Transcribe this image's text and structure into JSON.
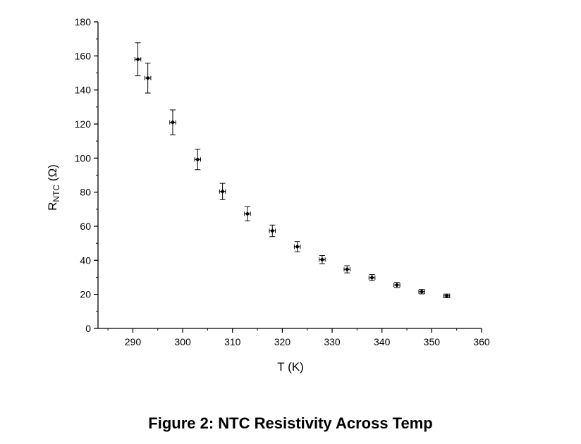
{
  "figure": {
    "caption": "Figure 2: NTC Resistivity Across Temp"
  },
  "chart_data": {
    "type": "scatter",
    "xlabel": "T (K)",
    "ylabel_main": "R",
    "ylabel_sub": "NTC",
    "ylabel_unit": " (Ω)",
    "xlim": [
      283,
      360
    ],
    "ylim": [
      0,
      180
    ],
    "x_ticks": [
      290,
      300,
      310,
      320,
      330,
      340,
      350,
      360
    ],
    "y_ticks": [
      0,
      20,
      40,
      60,
      80,
      100,
      120,
      140,
      160,
      180
    ],
    "grid": false,
    "series": [
      {
        "marker": "diamond",
        "color": "#000000",
        "points": [
          {
            "x": 291,
            "y": 158.0,
            "yerr": 9.7,
            "xerr": 0.6
          },
          {
            "x": 293,
            "y": 147.0,
            "yerr": 8.8,
            "xerr": 0.6
          },
          {
            "x": 298,
            "y": 121.0,
            "yerr": 7.3,
            "xerr": 0.6
          },
          {
            "x": 303,
            "y": 99.2,
            "yerr": 6.0,
            "xerr": 0.6
          },
          {
            "x": 308,
            "y": 80.4,
            "yerr": 4.8,
            "xerr": 0.6
          },
          {
            "x": 313,
            "y": 67.3,
            "yerr": 4.2,
            "xerr": 0.6
          },
          {
            "x": 318,
            "y": 57.3,
            "yerr": 3.4,
            "xerr": 0.6
          },
          {
            "x": 323,
            "y": 48.0,
            "yerr": 3.0,
            "xerr": 0.6
          },
          {
            "x": 328,
            "y": 40.4,
            "yerr": 2.4,
            "xerr": 0.6
          },
          {
            "x": 333,
            "y": 34.7,
            "yerr": 2.1,
            "xerr": 0.6
          },
          {
            "x": 338,
            "y": 29.8,
            "yerr": 1.8,
            "xerr": 0.6
          },
          {
            "x": 343,
            "y": 25.5,
            "yerr": 1.5,
            "xerr": 0.6
          },
          {
            "x": 348,
            "y": 21.6,
            "yerr": 1.3,
            "xerr": 0.6
          },
          {
            "x": 353,
            "y": 19.1,
            "yerr": 1.1,
            "xerr": 0.6
          }
        ]
      }
    ]
  }
}
